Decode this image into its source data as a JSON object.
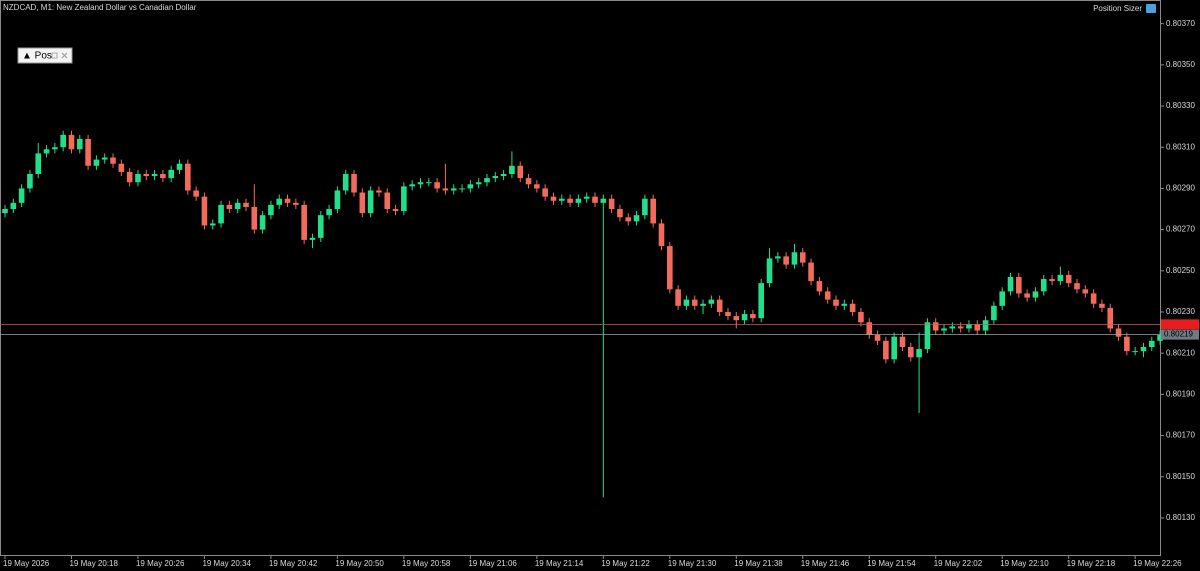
{
  "chart_data": {
    "type": "candlestick",
    "title": "NZDCAD, M1:  New Zealand Dollar vs Canadian Dollar",
    "indicator_label": "Position Sizer",
    "panel_button": "▲ Pos",
    "up_color": "#22e08a",
    "down_color": "#f26b5b",
    "ylim": [
      0.80112,
      0.80381
    ],
    "yticks": [
      {
        "value": 0.8037,
        "label": "0.80370"
      },
      {
        "value": 0.8035,
        "label": "0.80350"
      },
      {
        "value": 0.8033,
        "label": "0.80330"
      },
      {
        "value": 0.8031,
        "label": "0.80310"
      },
      {
        "value": 0.8029,
        "label": "0.80290"
      },
      {
        "value": 0.8027,
        "label": "0.80270"
      },
      {
        "value": 0.8025,
        "label": "0.80250"
      },
      {
        "value": 0.8023,
        "label": "0.80230"
      },
      {
        "value": 0.8021,
        "label": "0.80210"
      },
      {
        "value": 0.8019,
        "label": "0.80190"
      },
      {
        "value": 0.8017,
        "label": "0.80170"
      },
      {
        "value": 0.8015,
        "label": "0.80150"
      },
      {
        "value": 0.8013,
        "label": "0.80130"
      }
    ],
    "bid": 0.80219,
    "ask": 0.80224,
    "categories": [
      "19 May 2026",
      null,
      null,
      null,
      null,
      null,
      null,
      null,
      "19 May 20:18",
      null,
      null,
      null,
      null,
      null,
      null,
      null,
      "19 May 20:26",
      null,
      null,
      null,
      null,
      null,
      null,
      null,
      "19 May 20:34",
      null,
      null,
      null,
      null,
      null,
      null,
      null,
      "19 May 20:42",
      null,
      null,
      null,
      null,
      null,
      null,
      null,
      "19 May 20:50",
      null,
      null,
      null,
      null,
      null,
      null,
      null,
      "19 May 20:58",
      null,
      null,
      null,
      null,
      null,
      null,
      null,
      "19 May 21:06",
      null,
      null,
      null,
      null,
      null,
      null,
      null,
      "19 May 21:14",
      null,
      null,
      null,
      null,
      null,
      null,
      null,
      "19 May 21:22",
      null,
      null,
      null,
      null,
      null,
      null,
      null,
      "19 May 21:30",
      null,
      null,
      null,
      null,
      null,
      null,
      null,
      "19 May 21:38",
      null,
      null,
      null,
      null,
      null,
      null,
      null,
      "19 May 21:46",
      null,
      null,
      null,
      null,
      null,
      null,
      null,
      "19 May 21:54",
      null,
      null,
      null,
      null,
      null,
      null,
      null,
      "19 May 22:02",
      null,
      null,
      null,
      null,
      null,
      null,
      null,
      "19 May 22:10",
      null,
      null,
      null,
      null,
      null,
      null,
      null,
      "19 May 22:18",
      null,
      null,
      null,
      null,
      null,
      null,
      null,
      "19 May 22:26",
      null,
      null,
      null,
      null
    ],
    "open": [
      0.80278,
      0.8028,
      0.80283,
      0.8029,
      0.80297,
      0.80307,
      0.80309,
      0.8031,
      0.80316,
      0.80309,
      0.80314,
      0.80301,
      0.80304,
      0.80305,
      0.80302,
      0.80298,
      0.80293,
      0.80297,
      0.80296,
      0.80297,
      0.80295,
      0.80299,
      0.80302,
      0.80289,
      0.80286,
      0.80272,
      0.80273,
      0.80282,
      0.8028,
      0.80283,
      0.80281,
      0.8027,
      0.80277,
      0.80282,
      0.80285,
      0.80283,
      0.80282,
      0.80265,
      0.80266,
      0.80277,
      0.8028,
      0.80289,
      0.80297,
      0.80288,
      0.80278,
      0.80289,
      0.80288,
      0.8028,
      0.80279,
      0.80291,
      0.80292,
      0.80293,
      0.80293,
      0.8029,
      0.80289,
      0.8029,
      0.8029,
      0.80292,
      0.80293,
      0.80295,
      0.80296,
      0.80297,
      0.80301,
      0.80295,
      0.80292,
      0.8029,
      0.80286,
      0.80284,
      0.80285,
      0.80283,
      0.80285,
      0.80286,
      0.80283,
      0.80285,
      0.8028,
      0.80276,
      0.80274,
      0.80277,
      0.80285,
      0.80273,
      0.80262,
      0.80241,
      0.80233,
      0.80236,
      0.80233,
      0.80234,
      0.80236,
      0.8023,
      0.80228,
      0.80226,
      0.80229,
      0.80227,
      0.80244,
      0.80256,
      0.80257,
      0.80253,
      0.80259,
      0.80254,
      0.80245,
      0.8024,
      0.80236,
      0.80233,
      0.80234,
      0.8023,
      0.80225,
      0.80219,
      0.80216,
      0.80207,
      0.80218,
      0.80213,
      0.80208,
      0.80212,
      0.80225,
      0.80221,
      0.80222,
      0.80223,
      0.80222,
      0.80224,
      0.80221,
      0.80226,
      0.80233,
      0.8024,
      0.80247,
      0.80239,
      0.80237,
      0.8024,
      0.80246,
      0.80245,
      0.80248,
      0.80244,
      0.80241,
      0.80239,
      0.80234,
      0.80232,
      0.80222,
      0.80218,
      0.80211,
      0.80211,
      0.80213,
      0.80216,
      0.80219
    ],
    "high": [
      0.80282,
      0.80285,
      0.80292,
      0.80299,
      0.80312,
      0.80311,
      0.80312,
      0.80318,
      0.80318,
      0.80316,
      0.80316,
      0.80306,
      0.80307,
      0.80307,
      0.80304,
      0.803,
      0.80299,
      0.80299,
      0.80299,
      0.80299,
      0.80301,
      0.80304,
      0.80304,
      0.80291,
      0.80288,
      0.80275,
      0.80284,
      0.80284,
      0.80285,
      0.80285,
      0.80292,
      0.80279,
      0.80284,
      0.80287,
      0.80287,
      0.80285,
      0.80284,
      0.80268,
      0.80279,
      0.80282,
      0.80291,
      0.80299,
      0.80299,
      0.8029,
      0.80291,
      0.80291,
      0.8029,
      0.80282,
      0.80293,
      0.80294,
      0.80295,
      0.80295,
      0.80295,
      0.80302,
      0.80292,
      0.80292,
      0.80294,
      0.80295,
      0.80297,
      0.80298,
      0.80299,
      0.80308,
      0.80303,
      0.80297,
      0.80294,
      0.80292,
      0.80288,
      0.80287,
      0.80287,
      0.80287,
      0.80288,
      0.80288,
      0.80287,
      0.80287,
      0.80282,
      0.80278,
      0.80279,
      0.80287,
      0.80287,
      0.80275,
      0.80264,
      0.80243,
      0.80238,
      0.80238,
      0.80236,
      0.80238,
      0.80238,
      0.80232,
      0.8023,
      0.80231,
      0.80231,
      0.80246,
      0.80261,
      0.80259,
      0.80259,
      0.80263,
      0.80261,
      0.80256,
      0.80247,
      0.80242,
      0.80238,
      0.80236,
      0.80236,
      0.80232,
      0.80227,
      0.80221,
      0.80218,
      0.8022,
      0.8022,
      0.80215,
      0.8022,
      0.80227,
      0.80227,
      0.80224,
      0.80225,
      0.80225,
      0.80226,
      0.80226,
      0.80228,
      0.80235,
      0.80242,
      0.80249,
      0.80249,
      0.80241,
      0.80242,
      0.80248,
      0.80248,
      0.80252,
      0.8025,
      0.80246,
      0.80243,
      0.80241,
      0.80236,
      0.80234,
      0.80224,
      0.8022,
      0.80213,
      0.80215,
      0.80218,
      0.80221,
      0.80221
    ],
    "low": [
      0.80276,
      0.80278,
      0.80281,
      0.80288,
      0.80295,
      0.80305,
      0.80307,
      0.80308,
      0.80307,
      0.80307,
      0.80299,
      0.80299,
      0.80302,
      0.803,
      0.80296,
      0.80291,
      0.80291,
      0.80294,
      0.80294,
      0.80293,
      0.80293,
      0.80297,
      0.80287,
      0.80284,
      0.8027,
      0.8027,
      0.80271,
      0.80278,
      0.80278,
      0.80279,
      0.80268,
      0.80268,
      0.80275,
      0.8028,
      0.80281,
      0.8028,
      0.80263,
      0.80261,
      0.80264,
      0.80275,
      0.80278,
      0.80287,
      0.80286,
      0.80276,
      0.80276,
      0.80286,
      0.80278,
      0.80277,
      0.80277,
      0.80289,
      0.8029,
      0.80291,
      0.80288,
      0.80287,
      0.80287,
      0.80288,
      0.80288,
      0.8029,
      0.80291,
      0.80293,
      0.80294,
      0.80295,
      0.80293,
      0.8029,
      0.80288,
      0.80284,
      0.80282,
      0.80282,
      0.80281,
      0.80281,
      0.80283,
      0.80281,
      0.8014,
      0.80278,
      0.80274,
      0.80272,
      0.80272,
      0.80275,
      0.80271,
      0.8026,
      0.80239,
      0.80231,
      0.80231,
      0.80231,
      0.80229,
      0.80232,
      0.80228,
      0.80226,
      0.80222,
      0.80224,
      0.80225,
      0.80225,
      0.80242,
      0.80254,
      0.80251,
      0.80251,
      0.80252,
      0.80243,
      0.80238,
      0.80234,
      0.80231,
      0.80231,
      0.80228,
      0.80223,
      0.80217,
      0.80214,
      0.80205,
      0.80205,
      0.80211,
      0.80206,
      0.80181,
      0.8021,
      0.80219,
      0.80219,
      0.8022,
      0.8022,
      0.8022,
      0.80219,
      0.80219,
      0.80224,
      0.80231,
      0.80238,
      0.80237,
      0.80235,
      0.80235,
      0.80238,
      0.80243,
      0.80243,
      0.80242,
      0.80239,
      0.80237,
      0.80232,
      0.8023,
      0.8022,
      0.80216,
      0.80209,
      0.80209,
      0.80208,
      0.80211,
      0.80214,
      0.80217
    ],
    "close": [
      0.8028,
      0.80283,
      0.8029,
      0.80297,
      0.80307,
      0.80309,
      0.8031,
      0.80316,
      0.80309,
      0.80314,
      0.80301,
      0.80304,
      0.80305,
      0.80302,
      0.80298,
      0.80293,
      0.80297,
      0.80296,
      0.80297,
      0.80295,
      0.80299,
      0.80302,
      0.80289,
      0.80286,
      0.80272,
      0.80273,
      0.80282,
      0.8028,
      0.80283,
      0.80281,
      0.8027,
      0.80277,
      0.80282,
      0.80285,
      0.80283,
      0.80282,
      0.80265,
      0.80266,
      0.80277,
      0.8028,
      0.80289,
      0.80297,
      0.80288,
      0.80278,
      0.80289,
      0.80288,
      0.8028,
      0.80279,
      0.80291,
      0.80292,
      0.80293,
      0.80293,
      0.8029,
      0.80289,
      0.8029,
      0.8029,
      0.80292,
      0.80293,
      0.80295,
      0.80296,
      0.80297,
      0.80301,
      0.80295,
      0.80292,
      0.8029,
      0.80286,
      0.80284,
      0.80285,
      0.80283,
      0.80285,
      0.80286,
      0.80283,
      0.80285,
      0.8028,
      0.80276,
      0.80274,
      0.80277,
      0.80285,
      0.80273,
      0.80262,
      0.80241,
      0.80233,
      0.80236,
      0.80233,
      0.80234,
      0.80236,
      0.8023,
      0.80228,
      0.80226,
      0.80229,
      0.80227,
      0.80244,
      0.80256,
      0.80257,
      0.80253,
      0.80259,
      0.80254,
      0.80245,
      0.8024,
      0.80236,
      0.80233,
      0.80234,
      0.8023,
      0.80225,
      0.80219,
      0.80216,
      0.80207,
      0.80218,
      0.80213,
      0.80208,
      0.80212,
      0.80225,
      0.80221,
      0.80222,
      0.80223,
      0.80222,
      0.80224,
      0.80221,
      0.80226,
      0.80233,
      0.8024,
      0.80247,
      0.80239,
      0.80237,
      0.8024,
      0.80246,
      0.80245,
      0.80248,
      0.80244,
      0.80241,
      0.80239,
      0.80234,
      0.80232,
      0.80222,
      0.80218,
      0.80211,
      0.80211,
      0.80213,
      0.80216,
      0.80219,
      0.80219
    ]
  }
}
